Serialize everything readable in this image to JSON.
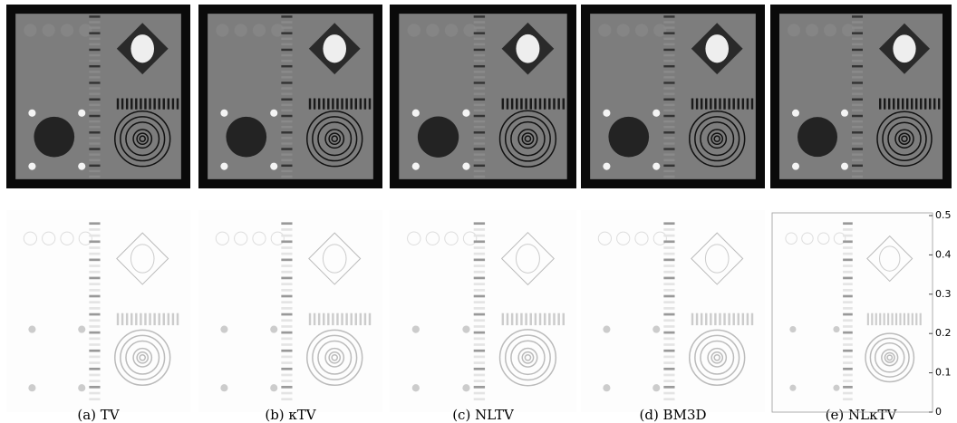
{
  "captions": [
    "(a) TV",
    "(b) κTV",
    "(c) NLTV",
    "(d) BM3D",
    "(e) NLκTV"
  ],
  "colorbar": {
    "lim": [
      0,
      0.5
    ],
    "ticks": [
      0,
      0.1,
      0.2,
      0.3,
      0.4,
      0.5
    ]
  }
}
